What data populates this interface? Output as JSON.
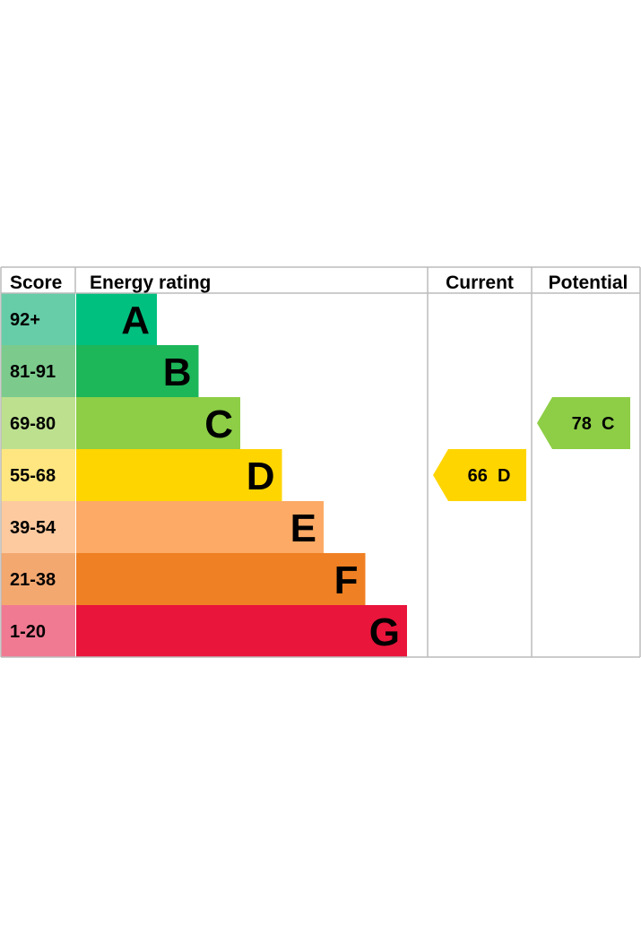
{
  "chart_data": {
    "type": "bar",
    "headers": {
      "score": "Score",
      "energy_rating": "Energy rating",
      "current": "Current",
      "potential": "Potential"
    },
    "bands": [
      {
        "letter": "A",
        "range": "92+",
        "color": "#00c07f",
        "score_color": "#66cda8"
      },
      {
        "letter": "B",
        "range": "81-91",
        "color": "#1db659",
        "score_color": "#7ccb8d"
      },
      {
        "letter": "C",
        "range": "69-80",
        "color": "#8dce46",
        "score_color": "#bde08f"
      },
      {
        "letter": "D",
        "range": "55-68",
        "color": "#ffd500",
        "score_color": "#ffe680"
      },
      {
        "letter": "E",
        "range": "39-54",
        "color": "#fcaa65",
        "score_color": "#fdcaa0"
      },
      {
        "letter": "F",
        "range": "21-38",
        "color": "#ef8023",
        "score_color": "#f3a870"
      },
      {
        "letter": "G",
        "range": "1-20",
        "color": "#e9153b",
        "score_color": "#f07a92"
      }
    ],
    "current": {
      "value": 66,
      "band": "D",
      "label": "66  D",
      "color": "#ffd500"
    },
    "potential": {
      "value": 78,
      "band": "C",
      "label": "78  C",
      "color": "#8dce46"
    },
    "border_color": "#bbbbbb"
  }
}
